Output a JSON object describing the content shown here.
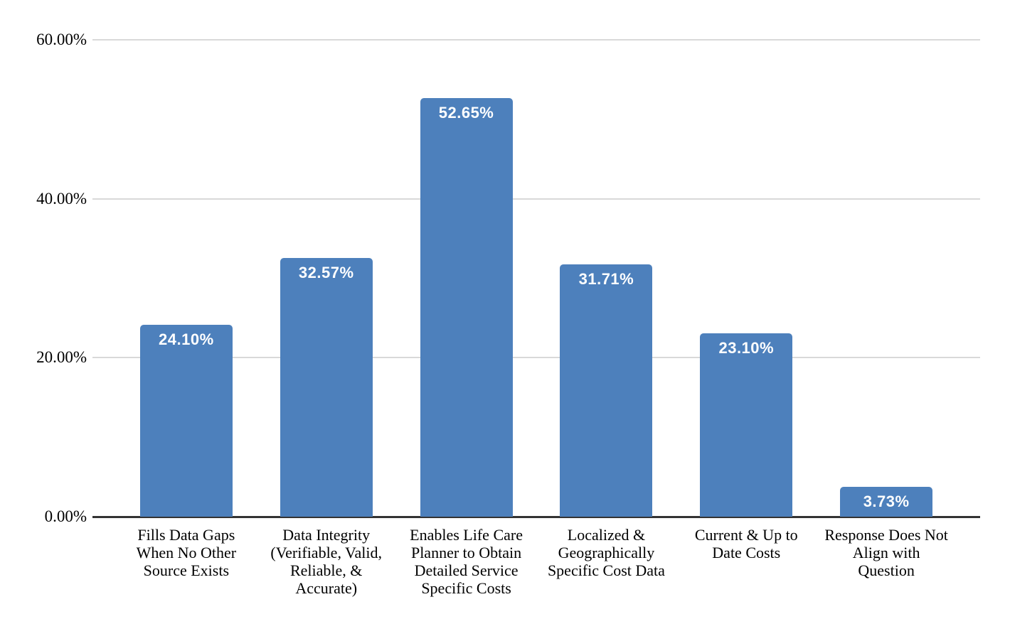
{
  "chart_data": {
    "type": "bar",
    "title": "",
    "xlabel": "",
    "ylabel": "",
    "categories": [
      "Fills Data Gaps When No Other Source Exists",
      "Data Integrity (Verifiable, Valid, Reliable, & Accurate)",
      "Enables Life Care Planner to Obtain Detailed Service Specific Costs",
      "Localized & Geographically Specific Cost Data",
      "Current & Up to Date Costs",
      "Response Does Not Align with Question"
    ],
    "values": [
      24.1,
      32.57,
      52.65,
      31.71,
      23.1,
      3.73
    ],
    "value_labels": [
      "24.10%",
      "32.57%",
      "52.65%",
      "31.71%",
      "23.10%",
      "3.73%"
    ],
    "ylim": [
      0,
      60
    ],
    "yticks": [
      0,
      20,
      40,
      60
    ],
    "ytick_labels": [
      "0.00%",
      "20.00%",
      "40.00%",
      "60.00%"
    ],
    "grid": true,
    "legend": false,
    "bar_color": "#4d80bc",
    "value_label_color": "#ffffff",
    "gridline_color": "#d9d9d9",
    "axis_line_color": "#333333",
    "background_color": "#ffffff"
  }
}
